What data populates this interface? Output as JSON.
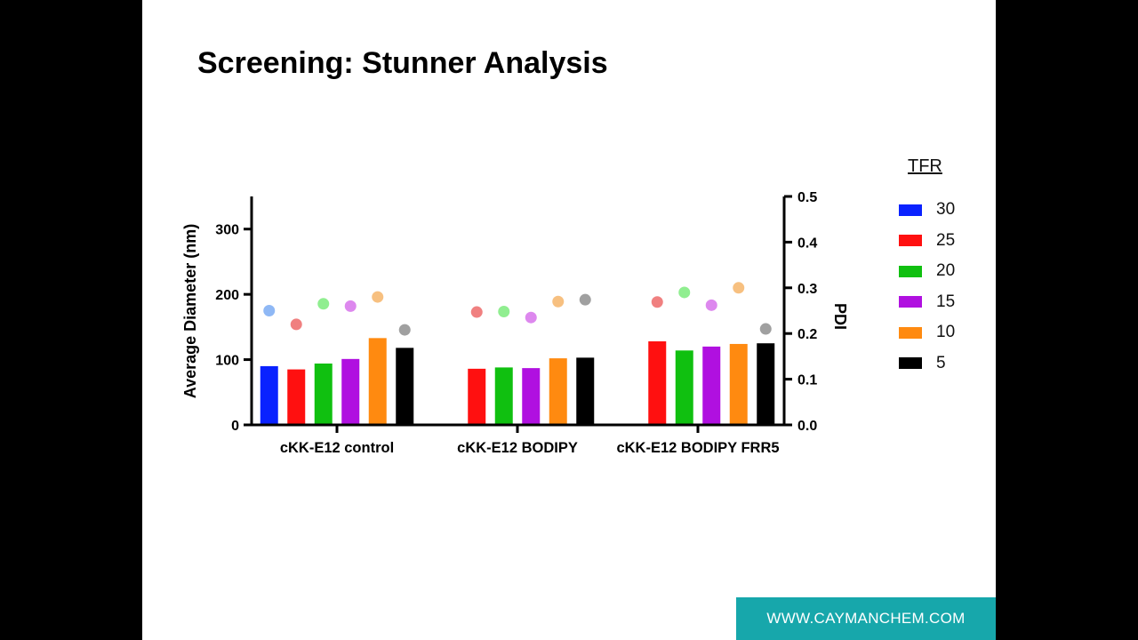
{
  "slide": {
    "title": "Screening: Stunner Analysis",
    "footer_link": "WWW.CAYMANCHEM.COM"
  },
  "legend": {
    "title": "TFR",
    "items": [
      {
        "label": "30",
        "color": "#0a22ff"
      },
      {
        "label": "25",
        "color": "#ff1010"
      },
      {
        "label": "20",
        "color": "#10c010"
      },
      {
        "label": "15",
        "color": "#b010e0"
      },
      {
        "label": "10",
        "color": "#ff8a10"
      },
      {
        "label": "5",
        "color": "#000000"
      }
    ]
  },
  "chart_data": {
    "type": "bar",
    "categories": [
      "cKK-E12 control",
      "cKK-E12 BODIPY",
      "cKK-E12 BODIPY FRR5"
    ],
    "ylabel": "Average Diameter (nm)",
    "y2label": "PDI",
    "ylim": [
      0,
      350
    ],
    "yticks": [
      0,
      100,
      200,
      300
    ],
    "y2lim": [
      0,
      0.5
    ],
    "y2ticks": [
      "0.0",
      "0.1",
      "0.2",
      "0.3",
      "0.4",
      "0.5"
    ],
    "bar_series": [
      {
        "name": "30",
        "color": "#0a22ff",
        "values": [
          90,
          null,
          null
        ]
      },
      {
        "name": "25",
        "color": "#ff1010",
        "values": [
          85,
          86,
          128
        ]
      },
      {
        "name": "20",
        "color": "#10c010",
        "values": [
          94,
          88,
          114
        ]
      },
      {
        "name": "15",
        "color": "#b010e0",
        "values": [
          101,
          87,
          120
        ]
      },
      {
        "name": "10",
        "color": "#ff8a10",
        "values": [
          133,
          102,
          124
        ]
      },
      {
        "name": "5",
        "color": "#000000",
        "values": [
          118,
          103,
          125
        ]
      }
    ],
    "pdi_series": [
      {
        "name": "30",
        "color": "#8fb8f5",
        "values": [
          0.25,
          null,
          null
        ]
      },
      {
        "name": "25",
        "color": "#f08080",
        "values": [
          0.22,
          0.247,
          0.269
        ]
      },
      {
        "name": "20",
        "color": "#90ee90",
        "values": [
          0.265,
          0.248,
          0.29
        ]
      },
      {
        "name": "15",
        "color": "#dd88ee",
        "values": [
          0.26,
          0.235,
          0.262
        ]
      },
      {
        "name": "10",
        "color": "#f7c080",
        "values": [
          0.28,
          0.27,
          0.3
        ]
      },
      {
        "name": "5",
        "color": "#a0a0a0",
        "values": [
          0.208,
          0.274,
          0.21
        ]
      }
    ]
  }
}
